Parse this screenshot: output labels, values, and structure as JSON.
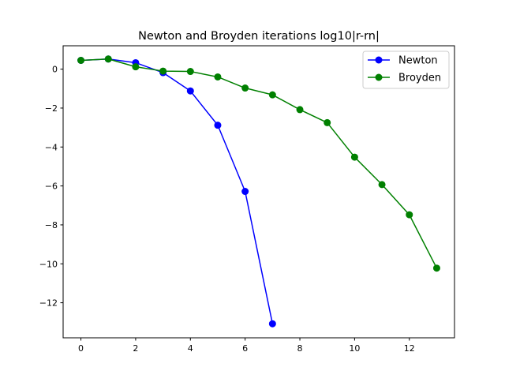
{
  "chart_data": {
    "type": "line",
    "title": "Newton and Broyden iterations log10|r-rn|",
    "xlabel": "",
    "ylabel": "",
    "xlim": [
      -0.65,
      13.65
    ],
    "ylim": [
      -13.8,
      1.2
    ],
    "xticks": [
      0,
      2,
      4,
      6,
      8,
      10,
      12
    ],
    "yticks": [
      0,
      -2,
      -4,
      -6,
      -8,
      -10,
      -12
    ],
    "xtick_labels": [
      "0",
      "2",
      "4",
      "6",
      "8",
      "10",
      "12"
    ],
    "ytick_labels": [
      "0",
      "−2",
      "−4",
      "−6",
      "−8",
      "−10",
      "−12"
    ],
    "grid": false,
    "legend_position": "top-right",
    "series": [
      {
        "name": "Newton",
        "color": "#0000ff",
        "marker": "circle",
        "x": [
          0,
          1,
          2,
          3,
          4,
          5,
          6,
          7
        ],
        "y": [
          0.45,
          0.52,
          0.33,
          -0.18,
          -1.12,
          -2.88,
          -6.28,
          -13.08
        ]
      },
      {
        "name": "Broyden",
        "color": "#008000",
        "marker": "circle",
        "x": [
          0,
          1,
          2,
          3,
          4,
          5,
          6,
          7,
          8,
          9,
          10,
          11,
          12,
          13
        ],
        "y": [
          0.45,
          0.52,
          0.12,
          -0.1,
          -0.12,
          -0.4,
          -0.97,
          -1.32,
          -2.08,
          -2.75,
          -4.52,
          -5.93,
          -7.48,
          -10.22
        ]
      }
    ]
  }
}
